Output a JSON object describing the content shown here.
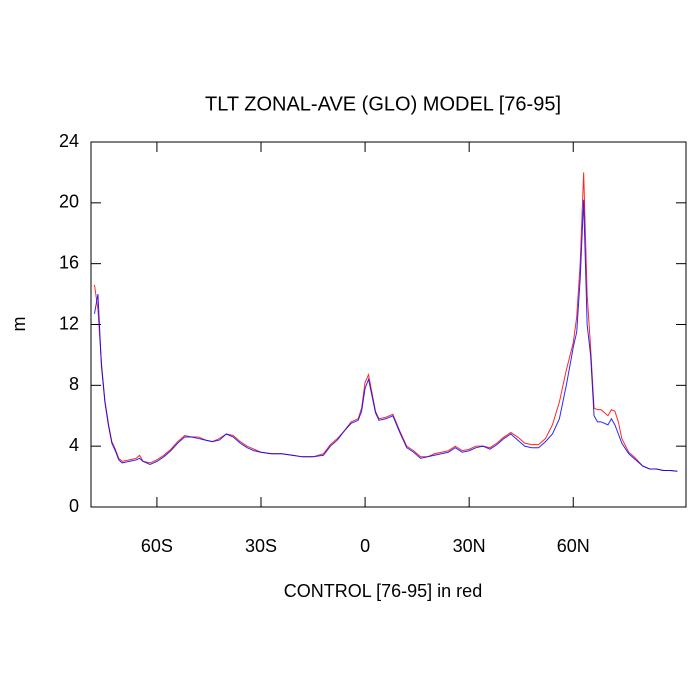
{
  "chart_data": {
    "type": "line",
    "title": "TLT ZONAL-AVE (GLO) MODEL [76-95]",
    "xlabel": "CONTROL [76-95] in red",
    "ylabel": "m",
    "x": [
      -78,
      -77,
      -76,
      -75,
      -74,
      -73,
      -72,
      -71,
      -70,
      -68,
      -66,
      -65,
      -64,
      -62,
      -60,
      -58,
      -56,
      -54,
      -52,
      -50,
      -48,
      -46,
      -44,
      -42,
      -40,
      -38,
      -36,
      -34,
      -32,
      -30,
      -27,
      -24,
      -21,
      -18,
      -15,
      -12,
      -10,
      -8,
      -6,
      -4,
      -2,
      -1,
      0,
      1,
      2,
      3,
      4,
      6,
      8,
      10,
      12,
      14,
      16,
      18,
      20,
      22,
      24,
      26,
      28,
      30,
      32,
      34,
      36,
      38,
      40,
      42,
      44,
      46,
      48,
      50,
      52,
      54,
      56,
      58,
      60,
      61,
      62,
      63,
      64,
      65,
      66,
      67,
      68,
      70,
      71,
      72,
      73,
      74,
      76,
      78,
      80,
      82,
      84,
      86,
      88,
      90
    ],
    "series": [
      {
        "name": "CONTROL",
        "color": "#ff0000",
        "values": [
          14.6,
          13,
          9.5,
          7,
          5.5,
          4.3,
          3.8,
          3.2,
          3.0,
          3.1,
          3.2,
          3.4,
          3.0,
          2.9,
          3.1,
          3.4,
          3.8,
          4.3,
          4.7,
          4.6,
          4.6,
          4.4,
          4.3,
          4.5,
          4.8,
          4.7,
          4.3,
          4.0,
          3.8,
          3.6,
          3.5,
          3.5,
          3.4,
          3.3,
          3.3,
          3.5,
          4.1,
          4.5,
          5.0,
          5.6,
          5.8,
          6.5,
          8.2,
          8.7,
          7.5,
          6.3,
          5.8,
          5.9,
          6.1,
          5.0,
          4.0,
          3.7,
          3.3,
          3.3,
          3.5,
          3.6,
          3.7,
          4.0,
          3.7,
          3.8,
          4.0,
          4.0,
          3.9,
          4.2,
          4.6,
          4.9,
          4.6,
          4.2,
          4.1,
          4.1,
          4.5,
          5.4,
          6.9,
          9.0,
          10.8,
          12.5,
          16,
          22,
          14,
          10.5,
          6.5,
          6.4,
          6.4,
          6.0,
          6.4,
          6.3,
          5.6,
          4.5,
          3.6,
          3.2,
          2.7,
          2.5,
          2.5,
          2.4,
          2.4,
          2.35
        ]
      },
      {
        "name": "MODEL",
        "color": "#0000ff",
        "values": [
          12.7,
          14,
          9.3,
          6.9,
          5.4,
          4.2,
          3.7,
          3.1,
          2.9,
          3.0,
          3.1,
          3.2,
          3.0,
          2.8,
          3.0,
          3.3,
          3.7,
          4.2,
          4.6,
          4.6,
          4.5,
          4.4,
          4.3,
          4.4,
          4.8,
          4.6,
          4.2,
          3.9,
          3.7,
          3.6,
          3.5,
          3.5,
          3.4,
          3.3,
          3.3,
          3.4,
          4.0,
          4.4,
          5.0,
          5.5,
          5.7,
          6.3,
          7.8,
          8.4,
          7.3,
          6.2,
          5.7,
          5.8,
          6.0,
          4.9,
          3.9,
          3.6,
          3.2,
          3.3,
          3.4,
          3.5,
          3.6,
          3.9,
          3.6,
          3.7,
          3.9,
          4.0,
          3.8,
          4.1,
          4.5,
          4.8,
          4.4,
          4.0,
          3.9,
          3.9,
          4.3,
          4.8,
          5.8,
          8.0,
          10.5,
          11.5,
          15,
          20.2,
          12,
          10,
          6.0,
          5.6,
          5.6,
          5.4,
          5.8,
          5.4,
          4.8,
          4.2,
          3.5,
          3.1,
          2.7,
          2.5,
          2.5,
          2.4,
          2.4,
          2.35
        ]
      }
    ],
    "xlim": [
      -79,
      92.5
    ],
    "xticks": [
      {
        "value": -60,
        "label": "60S"
      },
      {
        "value": -30,
        "label": "30S"
      },
      0,
      {
        "value": 30,
        "label": "30N"
      },
      {
        "value": 60,
        "label": "60N"
      }
    ],
    "ylim": [
      0,
      24
    ],
    "yticks": [
      0,
      4,
      8,
      12,
      16,
      20,
      24
    ],
    "grid": false
  }
}
